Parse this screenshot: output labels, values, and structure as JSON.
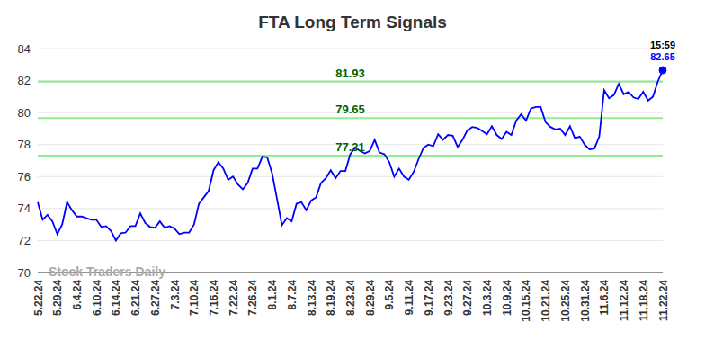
{
  "chart_data": {
    "type": "line",
    "title": "FTA Long Term Signals",
    "watermark": "Stock Traders Daily",
    "categories": [
      "5.22.24",
      null,
      null,
      null,
      "5.29.24",
      null,
      null,
      null,
      "6.4.24",
      null,
      null,
      null,
      "6.10.24",
      null,
      null,
      null,
      "6.14.24",
      null,
      null,
      null,
      "6.21.24",
      null,
      null,
      null,
      "6.27.24",
      null,
      null,
      null,
      "7.3.24",
      null,
      null,
      null,
      "7.10.24",
      null,
      null,
      null,
      "7.16.24",
      null,
      null,
      null,
      "7.22.24",
      null,
      null,
      null,
      "7.26.24",
      null,
      null,
      null,
      "8.1.24",
      null,
      null,
      null,
      "8.7.24",
      null,
      null,
      null,
      "8.13.24",
      null,
      null,
      null,
      "8.19.24",
      null,
      null,
      null,
      "8.23.24",
      null,
      null,
      null,
      "8.29.24",
      null,
      null,
      null,
      "9.5.24",
      null,
      null,
      null,
      "9.11.24",
      null,
      null,
      null,
      "9.17.24",
      null,
      null,
      null,
      "9.23.24",
      null,
      null,
      null,
      "9.27.24",
      null,
      null,
      null,
      "10.3.24",
      null,
      null,
      null,
      "10.9.24",
      null,
      null,
      null,
      "10.15.24",
      null,
      null,
      null,
      "10.21.24",
      null,
      null,
      null,
      "10.25.24",
      null,
      null,
      null,
      "10.31.24",
      null,
      null,
      null,
      "11.6.24",
      null,
      null,
      null,
      "11.12.24",
      null,
      null,
      null,
      "11.18.24",
      null,
      null,
      null,
      "11.22.24"
    ],
    "values": [
      74.4,
      73.3,
      73.6,
      73.2,
      72.4,
      73.0,
      74.4,
      73.9,
      73.5,
      73.5,
      73.4,
      73.3,
      73.3,
      72.85,
      72.9,
      72.6,
      72.0,
      72.45,
      72.5,
      72.9,
      72.9,
      73.7,
      73.1,
      72.85,
      72.8,
      73.2,
      72.8,
      72.9,
      72.75,
      72.4,
      72.5,
      72.5,
      73.0,
      74.3,
      74.7,
      75.1,
      76.4,
      76.9,
      76.5,
      75.8,
      76.0,
      75.5,
      75.2,
      75.6,
      76.5,
      76.5,
      77.25,
      77.2,
      76.2,
      74.6,
      72.95,
      73.4,
      73.2,
      74.3,
      74.4,
      73.9,
      74.5,
      74.7,
      75.6,
      75.9,
      76.4,
      75.9,
      76.35,
      76.35,
      77.4,
      77.8,
      77.6,
      77.45,
      77.6,
      78.3,
      77.5,
      77.4,
      76.9,
      76.0,
      76.5,
      76.0,
      75.8,
      76.3,
      77.1,
      77.8,
      78.0,
      77.9,
      78.65,
      78.3,
      78.6,
      78.55,
      77.85,
      78.3,
      78.9,
      79.1,
      79.05,
      78.85,
      78.65,
      79.15,
      78.6,
      78.35,
      78.8,
      78.6,
      79.5,
      79.9,
      79.5,
      80.25,
      80.35,
      80.35,
      79.4,
      79.1,
      78.95,
      79.0,
      78.6,
      79.15,
      78.4,
      78.5,
      78.0,
      77.7,
      77.75,
      78.5,
      81.4,
      80.9,
      81.1,
      81.8,
      81.15,
      81.3,
      80.95,
      80.85,
      81.3,
      80.75,
      81.0,
      81.95,
      82.65
    ],
    "color": "#0000ff",
    "ylim": [
      70,
      84
    ],
    "yticks": [
      70,
      72,
      74,
      76,
      78,
      80,
      82,
      84
    ],
    "grid": true,
    "reference_lines": [
      {
        "value": 81.93,
        "color": "#90ee90"
      },
      {
        "value": 79.65,
        "color": "#90ee90"
      },
      {
        "value": 77.31,
        "color": "#90ee90"
      }
    ],
    "annotation": {
      "time": "15:59",
      "value": 82.65
    }
  }
}
